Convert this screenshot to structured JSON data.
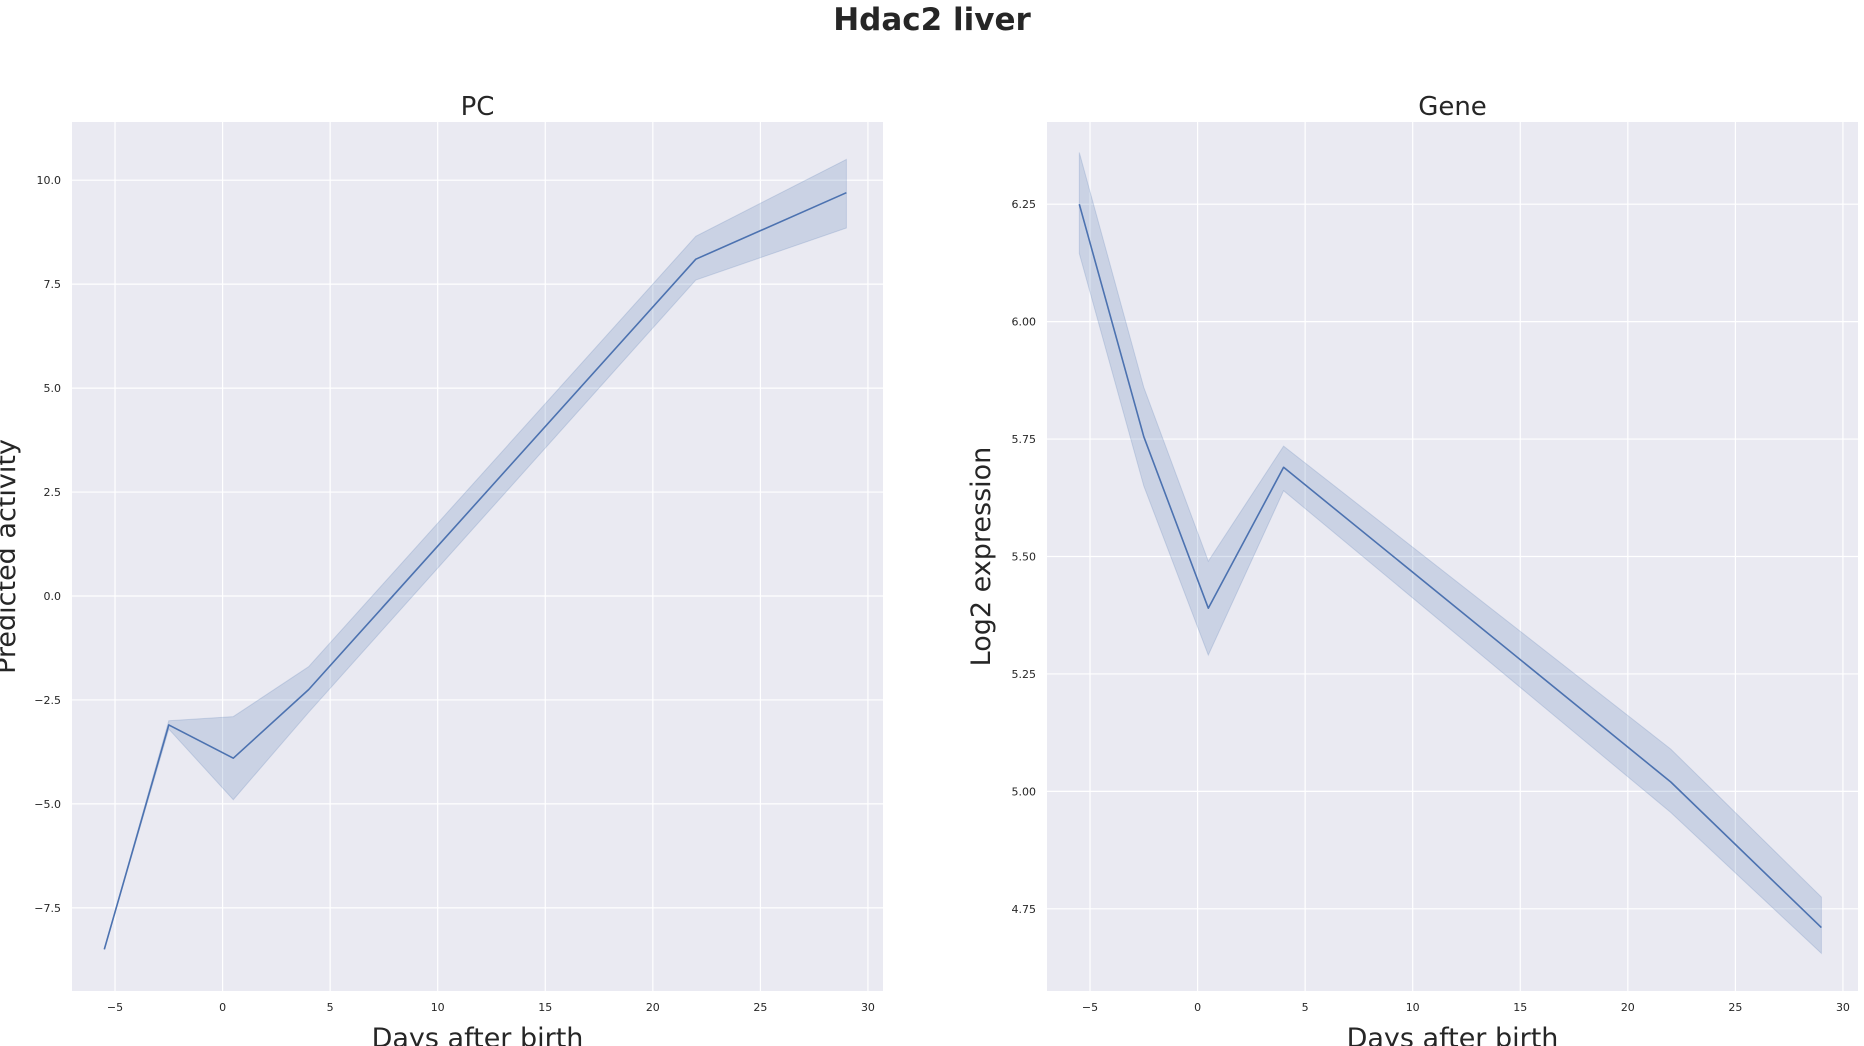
{
  "figure": {
    "suptitle": "Hdac2 liver"
  },
  "chart_data": [
    {
      "type": "line",
      "title": "PC",
      "xlabel": "Days after birth",
      "ylabel": "Predicted activity",
      "xlim": [
        -7,
        30.7
      ],
      "ylim": [
        -9.5,
        11.4
      ],
      "xticks": [
        -5,
        0,
        5,
        10,
        15,
        20,
        25,
        30
      ],
      "xtick_labels": [
        "−5",
        "0",
        "5",
        "10",
        "15",
        "20",
        "25",
        "30"
      ],
      "yticks": [
        -7.5,
        -5.0,
        -2.5,
        0.0,
        2.5,
        5.0,
        7.5,
        10.0
      ],
      "ytick_labels": [
        "−7.5",
        "−5.0",
        "−2.5",
        "0.0",
        "2.5",
        "5.0",
        "7.5",
        "10.0"
      ],
      "grid": true,
      "series": [
        {
          "x": [
            -5.5,
            -2.5,
            0.5,
            4,
            22,
            29
          ],
          "y": [
            -8.5,
            -3.1,
            -3.9,
            -2.25,
            8.1,
            9.7
          ],
          "ci_low": [
            -8.5,
            -3.2,
            -4.9,
            -2.8,
            7.6,
            8.85
          ],
          "ci_high": [
            -8.5,
            -3.0,
            -2.9,
            -1.7,
            8.65,
            10.5
          ],
          "color": "#4c72b0"
        }
      ]
    },
    {
      "type": "line",
      "title": "Gene",
      "xlabel": "Days after birth",
      "ylabel": "Log2 expression",
      "xlim": [
        -7,
        30.7
      ],
      "ylim": [
        4.575,
        6.425
      ],
      "xticks": [
        -5,
        0,
        5,
        10,
        15,
        20,
        25,
        30
      ],
      "xtick_labels": [
        "−5",
        "0",
        "5",
        "10",
        "15",
        "20",
        "25",
        "30"
      ],
      "yticks": [
        4.75,
        5.0,
        5.25,
        5.5,
        5.75,
        6.0,
        6.25
      ],
      "ytick_labels": [
        "4.75",
        "5.00",
        "5.25",
        "5.50",
        "5.75",
        "6.00",
        "6.25"
      ],
      "grid": true,
      "series": [
        {
          "x": [
            -5.5,
            -2.5,
            0.5,
            4,
            22,
            29
          ],
          "y": [
            6.25,
            5.755,
            5.39,
            5.69,
            5.02,
            4.71
          ],
          "ci_low": [
            6.145,
            5.65,
            5.29,
            5.64,
            4.955,
            4.655
          ],
          "ci_high": [
            6.36,
            5.86,
            5.49,
            5.735,
            5.09,
            4.775
          ],
          "color": "#4c72b0"
        }
      ]
    }
  ]
}
